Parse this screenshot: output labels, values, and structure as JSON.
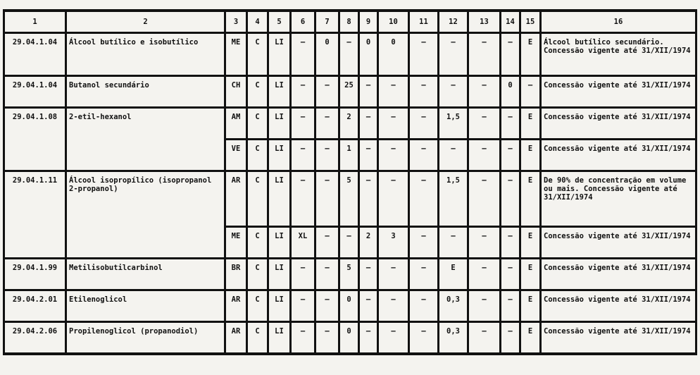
{
  "headers": [
    "1",
    "2",
    "3",
    "4",
    "5",
    "6",
    "7",
    "8",
    "9",
    "10",
    "11",
    "12",
    "13",
    "14",
    "15",
    "16"
  ],
  "groups": [
    {
      "code": "29.04.1.04",
      "name": "Álcool butílico e isobutílico",
      "rows": [
        [
          "ME",
          "C",
          "LI",
          "–",
          "0",
          "–",
          "0",
          "0",
          "–",
          "–",
          "–",
          "–",
          "E",
          "Álcool butílico secundário. Concessão vigente até 31/XII/1974"
        ]
      ]
    },
    {
      "code": "29.04.1.04",
      "name": "Butanol secundário",
      "rows": [
        [
          "CH",
          "C",
          "LI",
          "–",
          "–",
          "25",
          "–",
          "–",
          "–",
          "–",
          "–",
          "0",
          "–",
          "Concessão vigente até 31/XII/1974"
        ]
      ]
    },
    {
      "code": "29.04.1.08",
      "name": "2-etil-hexanol",
      "rows": [
        [
          "AM",
          "C",
          "LI",
          "–",
          "–",
          "2",
          "–",
          "–",
          "–",
          "1,5",
          "–",
          "–",
          "E",
          "Concessão vigente até 31/XII/1974"
        ],
        [
          "VE",
          "C",
          "LI",
          "–",
          "–",
          "1",
          "–",
          "–",
          "–",
          "–",
          "–",
          "–",
          "E",
          "Concessão vigente até 31/XII/1974"
        ]
      ]
    },
    {
      "code": "29.04.1.11",
      "name": "Álcool isopropílico (isopropanol 2-propanol)",
      "rows": [
        [
          "AR",
          "C",
          "LI",
          "–",
          "–",
          "5",
          "–",
          "–",
          "–",
          "1,5",
          "–",
          "–",
          "E",
          "De 90% de concentração em volume ou mais. Concessão vigente até 31/XII/1974"
        ],
        [
          "ME",
          "C",
          "LI",
          "XL",
          "–",
          "–",
          "2",
          "3",
          "–",
          "–",
          "–",
          "–",
          "E",
          "Concessão vigente até 31/XII/1974"
        ]
      ]
    },
    {
      "code": "29.04.1.99",
      "name": "Metilisobutilcarbinol",
      "rows": [
        [
          "BR",
          "C",
          "LI",
          "–",
          "–",
          "5",
          "–",
          "–",
          "–",
          "E",
          "–",
          "–",
          "E",
          "Concessão vigente até 31/XII/1974"
        ]
      ]
    },
    {
      "code": "29.04.2.01",
      "name": "Etilenoglicol",
      "rows": [
        [
          "AR",
          "C",
          "LI",
          "–",
          "–",
          "0",
          "–",
          "–",
          "–",
          "0,3",
          "–",
          "–",
          "E",
          "Concessão vigente até 31/XII/1974"
        ]
      ]
    },
    {
      "code": "29.04.2.06",
      "name": "Propilenoglicol (propanodiol)",
      "rows": [
        [
          "AR",
          "C",
          "LI",
          "–",
          "–",
          "0",
          "–",
          "–",
          "–",
          "0,3",
          "–",
          "–",
          "E",
          "Concessão vigente até 31/XII/1974"
        ]
      ]
    }
  ]
}
